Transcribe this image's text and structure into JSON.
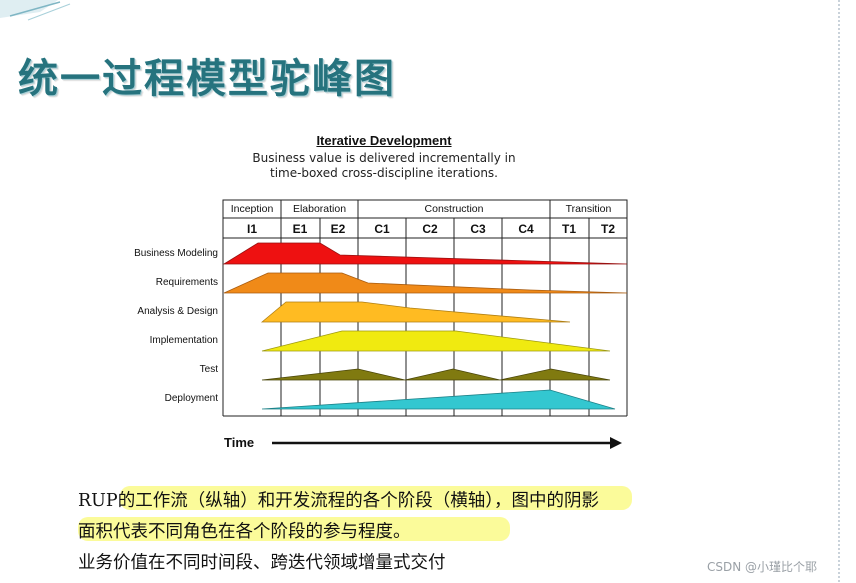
{
  "slide": {
    "title": "统一过程模型驼峰图",
    "caption_line1": "RUP的工作流（纵轴）和开发流程的各个阶段（横轴），图中的阴影",
    "caption_line2": "面积代表不同角色在各个阶段的参与程度。",
    "caption_line3": "业务价值在不同时间段、跨迭代领域增量式交付",
    "watermark": "CSDN @小瑾比个耶",
    "colors": {
      "title": "#26737e",
      "highlight": "#fafa78"
    }
  },
  "diagram": {
    "title": "Iterative Development",
    "subtitle_line1": "Business value is delivered incrementally in",
    "subtitle_line2": "time-boxed cross-discipline iterations.",
    "phases": [
      {
        "label": "Inception"
      },
      {
        "label": "Elaboration"
      },
      {
        "label": "Construction"
      },
      {
        "label": "Transition"
      }
    ],
    "iterations": [
      "I1",
      "E1",
      "E2",
      "C1",
      "C2",
      "C3",
      "C4",
      "T1",
      "T2"
    ],
    "workflows": [
      {
        "label": "Business Modeling",
        "color": "#ee1111"
      },
      {
        "label": "Requirements",
        "color": "#f08a18"
      },
      {
        "label": "Analysis & Design",
        "color": "#ffbb22"
      },
      {
        "label": "Implementation",
        "color": "#f0ea10"
      },
      {
        "label": "Test",
        "color": "#807a10"
      },
      {
        "label": "Deployment",
        "color": "#33c7d0"
      }
    ],
    "axis_label": "Time"
  }
}
